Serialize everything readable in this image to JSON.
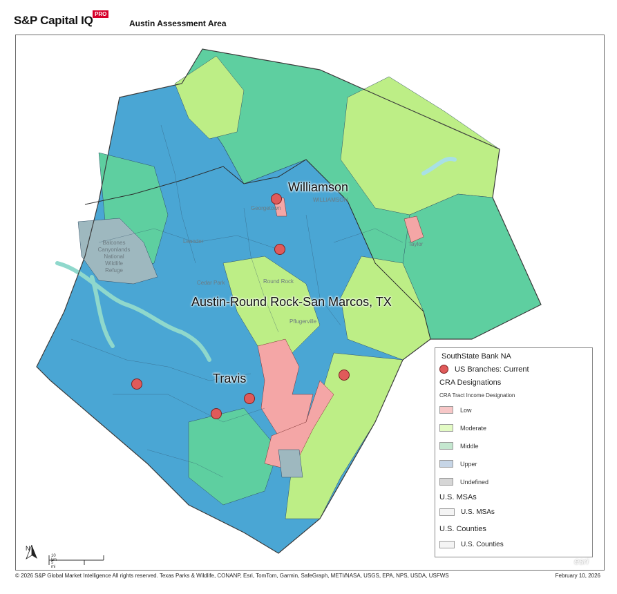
{
  "header": {
    "brand": "S&P Capital IQ",
    "brand_badge": "PRO",
    "map_title": "Austin Assessment Area"
  },
  "map": {
    "region_labels": {
      "williamson": "Williamson",
      "msa": "Austin-Round Rock-San Marcos, TX",
      "travis": "Travis"
    },
    "basemap_labels": {
      "balcones": "Balcones\nCanyonlands\nNational\nWildlife\nRefuge",
      "georgetown": "Georgetown",
      "round_rock": "Round Rock",
      "cedar_park": "Cedar Park",
      "leander": "Leander",
      "pflugerville": "Pflugerville",
      "taylor": "Taylor",
      "williamson_bg": "WILLIAMSON"
    },
    "colors": {
      "low": "#f4a6a6",
      "moderate": "#bdee86",
      "middle": "#5ecfa0",
      "upper": "#4aa6d4",
      "undefined": "#9eb8bf",
      "branch": "#e05a5a"
    },
    "branch_count": 6
  },
  "legend": {
    "title": "SouthState Bank NA",
    "branches_label": "US Branches: Current",
    "cra_heading": "CRA Designations",
    "cra_subheading": "CRA Tract Income Designation",
    "items": [
      {
        "label": "Low",
        "color": "#f7c7c7"
      },
      {
        "label": "Moderate",
        "color": "#e3fbc4"
      },
      {
        "label": "Middle",
        "color": "#c4e7cf"
      },
      {
        "label": "Upper",
        "color": "#c6d5e6"
      },
      {
        "label": "Undefined",
        "color": "#d6d6d6"
      }
    ],
    "msa_heading": "U.S. MSAs",
    "msa_item": "U.S. MSAs",
    "county_heading": "U.S. Counties",
    "county_item": "U.S. Counties"
  },
  "scale": {
    "km": "10 km",
    "mi": "5 mi",
    "north": "N"
  },
  "watermark": "esri",
  "footer": {
    "attribution": "© 2026 S&P Global Market Intelligence All rights reserved. Texas Parks & Wildlife, CONANP, Esri, TomTom, Garmin, SafeGraph, METI/NASA, USGS, EPA, NPS, USDA, USFWS",
    "date": "February 10, 2026"
  }
}
